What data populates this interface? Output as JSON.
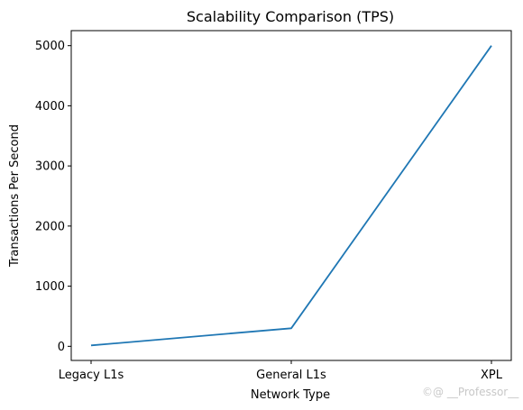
{
  "chart_data": {
    "type": "line",
    "title": "Scalability Comparison (TPS)",
    "xlabel": "Network Type",
    "ylabel": "Transactions Per Second",
    "categories": [
      "Legacy L1s",
      "General L1s",
      "XPL"
    ],
    "series": [
      {
        "values": [
          15,
          300,
          5000
        ],
        "color": "#1f77b4"
      }
    ],
    "yticks": [
      0,
      1000,
      2000,
      3000,
      4000,
      5000
    ],
    "ylim": [
      -235,
      5250
    ],
    "grid": false
  },
  "watermark": "©@ __Professor__"
}
